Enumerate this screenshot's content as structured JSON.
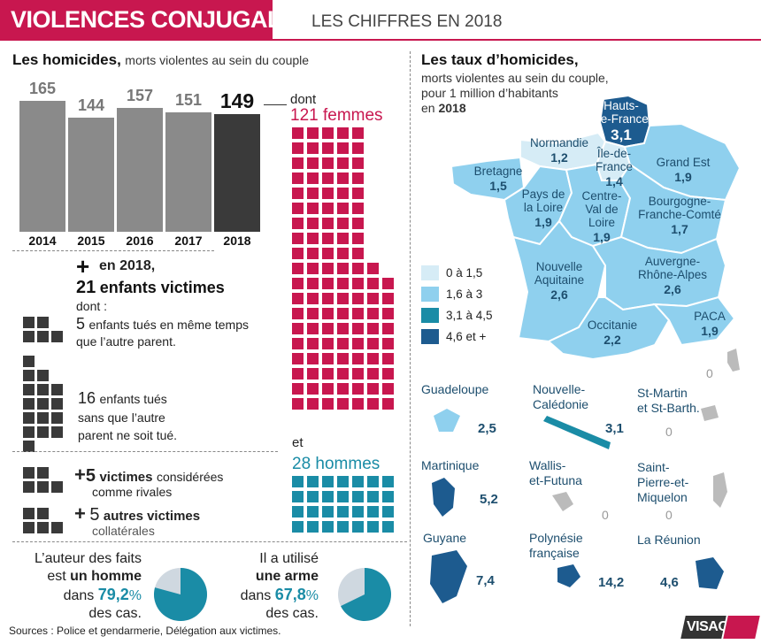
{
  "header": {
    "title": "VIOLENCES CONJUGALES",
    "subtitle": "LES CHIFFRES EN 2018"
  },
  "homicides": {
    "title": "Les homicides,",
    "subtitle": "morts violentes au sein du couple",
    "dont_label": "dont",
    "femmes_label": "121 femmes",
    "et_label": "et",
    "hommes_label": "28 hommes"
  },
  "chart_data": {
    "type": "bar",
    "categories": [
      "2014",
      "2015",
      "2016",
      "2017",
      "2018"
    ],
    "values": [
      165,
      144,
      157,
      151,
      149
    ],
    "title": "Les homicides, morts violentes au sein du couple",
    "breakdown_2018": {
      "femmes": 121,
      "hommes": 28
    },
    "colors": {
      "bars": "#8a8a8a",
      "highlight": "#3a3a3a",
      "femmes": "#c8174f",
      "hommes": "#1a8ca6"
    }
  },
  "enfants": {
    "plus": "+",
    "intro": "en 2018,",
    "headline_num": "21",
    "headline_text": "enfants victimes",
    "dont": "dont :",
    "group1_num": "5",
    "group1_text_a": "enfants tués en même temps",
    "group1_text_b": "que l’autre parent.",
    "group2_num": "16",
    "group2_text_a": "enfants tués",
    "group2_text_b": "sans que l’autre",
    "group2_text_c": "parent ne soit tué.",
    "rivales_plus": "+",
    "rivales_num": "5",
    "rivales_bold": "victimes",
    "rivales_text_a": "considérées",
    "rivales_text_b": "comme rivales",
    "collat_plus": "+",
    "collat_num": "5",
    "collat_bold": "autres victimes",
    "collat_text": "collatérales"
  },
  "auteur": {
    "line1": "L’auteur des faits",
    "line2_a": "est",
    "line2_b": "un homme",
    "line3_a": "dans",
    "line3_b": "79,2",
    "line3_c": "%",
    "line4": "des cas.",
    "percent": 79.2
  },
  "arme": {
    "line1": "Il a utilisé",
    "line2": "une arme",
    "line3_a": "dans",
    "line3_b": "67,8",
    "line3_c": "%",
    "line4": "des cas.",
    "percent": 67.8
  },
  "map": {
    "title": "Les taux d’homicides,",
    "sub1": "morts violentes au sein du couple,",
    "sub2": "pour 1 million d’habitants",
    "sub3_a": "en",
    "sub3_b": "2018",
    "regions": [
      {
        "name": "Hauts-\nde-France",
        "value": "3,1"
      },
      {
        "name": "Normandie",
        "value": "1,2"
      },
      {
        "name": "Île-de-\nFrance",
        "value": "1,4"
      },
      {
        "name": "Grand Est",
        "value": "1,9"
      },
      {
        "name": "Bretagne",
        "value": "1,5"
      },
      {
        "name": "Pays de\nla Loire",
        "value": "1,9"
      },
      {
        "name": "Centre-\nVal de\nLoire",
        "value": "1,9"
      },
      {
        "name": "Bourgogne-\nFranche-Comté",
        "value": "1,7"
      },
      {
        "name": "Nouvelle\nAquitaine",
        "value": "2,6"
      },
      {
        "name": "Auvergne-\nRhône-Alpes",
        "value": "2,6"
      },
      {
        "name": "Occitanie",
        "value": "2,2"
      },
      {
        "name": "PACA",
        "value": "1,9"
      }
    ],
    "corse_value": "0",
    "legend": [
      {
        "label": "0 à 1,5",
        "color": "#d6ecf6"
      },
      {
        "label": "1,6 à 3",
        "color": "#8fd0ee"
      },
      {
        "label": "3,1 à 4,5",
        "color": "#1a8ca6"
      },
      {
        "label": "4,6 et +",
        "color": "#1d5b8f"
      }
    ],
    "dom": [
      {
        "name": "Guadeloupe",
        "value": "2,5"
      },
      {
        "name": "Nouvelle-\nCalédonie",
        "value": "3,1"
      },
      {
        "name": "St-Martin\net St-Barth.",
        "value": "0"
      },
      {
        "name": "Martinique",
        "value": "5,2"
      },
      {
        "name": "Wallis-\net-Futuna",
        "value": "0"
      },
      {
        "name": "Saint-\nPierre-et-\nMiquelon",
        "value": "0"
      },
      {
        "name": "Guyane",
        "value": "7,4"
      },
      {
        "name": "Polynésie\nfrançaise",
        "value": "14,2"
      },
      {
        "name": "La Réunion",
        "value": "4,6"
      }
    ]
  },
  "footer": {
    "sources": "Sources : Police et gendarmerie, Délégation aux victimes.",
    "logo": "VISACTU"
  }
}
